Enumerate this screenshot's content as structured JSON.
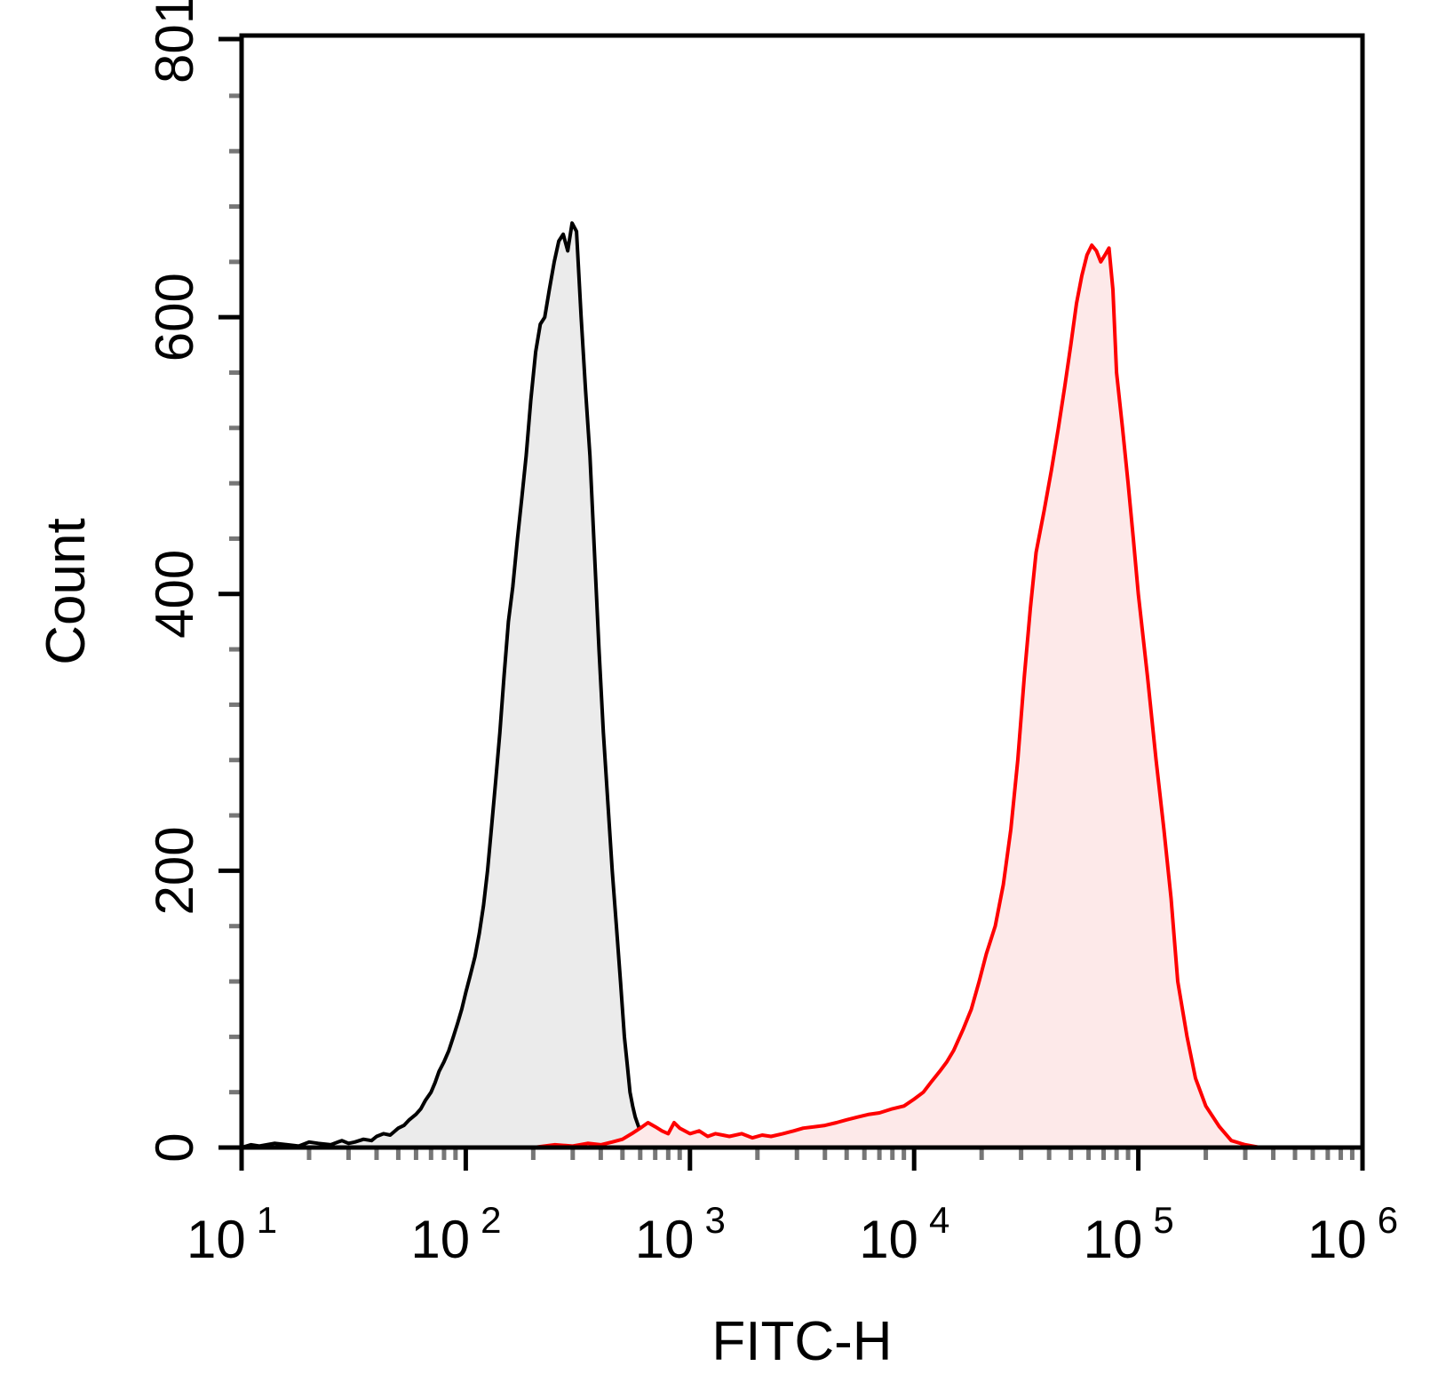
{
  "chart_data": {
    "type": "area",
    "title": "",
    "xlabel": "FITC-H",
    "ylabel": "Count",
    "xscale": "log",
    "xlim": [
      10,
      1000000
    ],
    "ylim": [
      0,
      801
    ],
    "x_ticks": [
      {
        "value": 10,
        "base": "10",
        "exp": "1"
      },
      {
        "value": 100,
        "base": "10",
        "exp": "2"
      },
      {
        "value": 1000,
        "base": "10",
        "exp": "3"
      },
      {
        "value": 10000,
        "base": "10",
        "exp": "4"
      },
      {
        "value": 100000,
        "base": "10",
        "exp": "5"
      },
      {
        "value": 1000000,
        "base": "10",
        "exp": "6"
      }
    ],
    "y_ticks": [
      {
        "value": 0,
        "label": "0"
      },
      {
        "value": 200,
        "label": "200"
      },
      {
        "value": 400,
        "label": "400"
      },
      {
        "value": 600,
        "label": "600"
      },
      {
        "value": 801,
        "label": "801"
      }
    ],
    "grid": false,
    "legend": "none",
    "series": [
      {
        "color": "#000000",
        "fill": "#ebebeb",
        "x": [
          10,
          11,
          12,
          14,
          16,
          18,
          20,
          22,
          25,
          28,
          30,
          32,
          35,
          38,
          40,
          43,
          46,
          50,
          53,
          56,
          60,
          63,
          66,
          70,
          73,
          76,
          80,
          84,
          88,
          92,
          96,
          100,
          105,
          110,
          115,
          120,
          125,
          130,
          136,
          142,
          148,
          155,
          162,
          170,
          178,
          186,
          195,
          205,
          215,
          225,
          236,
          248,
          260,
          272,
          285,
          298,
          312,
          327,
          342,
          358,
          375,
          393,
          411,
          430,
          450,
          470,
          490,
          510,
          525,
          540,
          555,
          570,
          590,
          620,
          660,
          700,
          760,
          830,
          900,
          980,
          1060,
          1150,
          1250,
          1350,
          1450,
          1550,
          1700,
          1900,
          2200,
          2600,
          3000,
          3600,
          4300,
          5200,
          6500,
          8000,
          10000,
          13000,
          16000,
          20000,
          25000,
          30000
        ],
        "y": [
          0,
          2,
          1,
          3,
          2,
          1,
          4,
          3,
          2,
          5,
          3,
          4,
          6,
          5,
          8,
          10,
          9,
          14,
          16,
          20,
          24,
          28,
          34,
          40,
          47,
          55,
          62,
          70,
          80,
          90,
          100,
          112,
          125,
          138,
          155,
          175,
          200,
          230,
          265,
          300,
          340,
          380,
          405,
          440,
          470,
          500,
          540,
          575,
          595,
          600,
          620,
          640,
          655,
          660,
          648,
          668,
          662,
          600,
          548,
          500,
          430,
          360,
          300,
          250,
          200,
          160,
          120,
          80,
          60,
          40,
          30,
          22,
          15,
          12,
          10,
          8,
          6,
          5,
          4,
          3,
          3,
          2,
          2,
          1,
          1,
          1,
          0,
          1,
          0,
          1,
          0,
          0,
          1,
          0,
          0,
          0,
          0,
          0,
          0,
          0,
          0,
          0
        ]
      },
      {
        "color": "#ff0000",
        "fill": "#fde9e9",
        "x": [
          150,
          200,
          250,
          300,
          350,
          400,
          450,
          500,
          550,
          600,
          650,
          700,
          750,
          800,
          850,
          900,
          1000,
          1100,
          1200,
          1300,
          1400,
          1500,
          1700,
          1900,
          2100,
          2300,
          2600,
          2900,
          3200,
          3600,
          4000,
          4500,
          5000,
          5600,
          6300,
          7000,
          8000,
          9000,
          10000,
          11000,
          12000,
          13000,
          14000,
          15000,
          16500,
          18000,
          19500,
          21000,
          23000,
          25000,
          27000,
          29000,
          31000,
          33000,
          35000,
          38000,
          41000,
          44000,
          47000,
          50000,
          53000,
          56000,
          59000,
          62000,
          65000,
          68000,
          71000,
          74000,
          77000,
          80000,
          85000,
          90000,
          95000,
          100000,
          110000,
          120000,
          130000,
          140000,
          150000,
          165000,
          180000,
          200000,
          230000,
          260000,
          300000,
          350000,
          400000,
          500000,
          700000,
          1000000
        ],
        "y": [
          0,
          0,
          2,
          1,
          3,
          2,
          4,
          6,
          10,
          14,
          18,
          15,
          12,
          10,
          18,
          14,
          10,
          12,
          8,
          10,
          9,
          8,
          10,
          7,
          9,
          8,
          10,
          12,
          14,
          15,
          16,
          18,
          20,
          22,
          24,
          25,
          28,
          30,
          35,
          40,
          48,
          55,
          62,
          70,
          85,
          100,
          120,
          140,
          160,
          190,
          230,
          280,
          340,
          390,
          430,
          460,
          490,
          520,
          550,
          580,
          610,
          630,
          645,
          652,
          648,
          640,
          645,
          650,
          620,
          560,
          520,
          480,
          440,
          400,
          340,
          280,
          230,
          180,
          120,
          80,
          50,
          30,
          15,
          5,
          2,
          0,
          0,
          0,
          0,
          0
        ]
      }
    ]
  }
}
